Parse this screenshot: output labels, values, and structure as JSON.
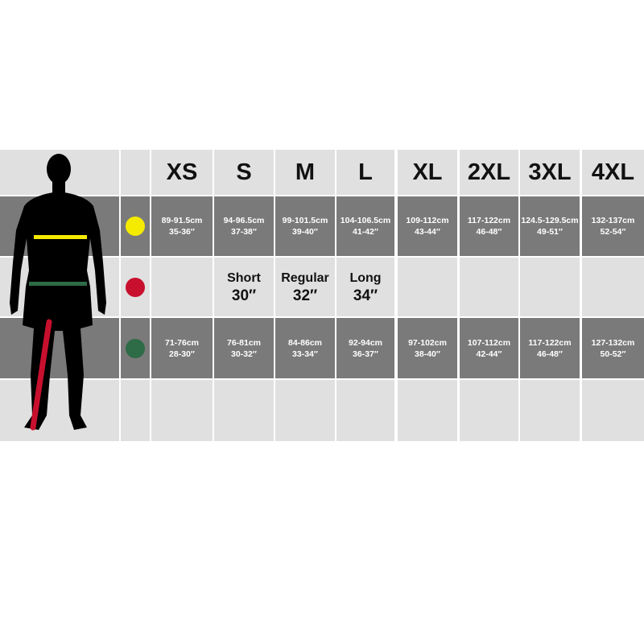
{
  "sizes": [
    "XS",
    "S",
    "M",
    "L",
    "XL",
    "2XL",
    "3XL",
    "4XL"
  ],
  "colors": {
    "chest": "#f5eb00",
    "leg": "#c8102e",
    "waist": "#2e6b47",
    "dark_row": "#7a7a7a",
    "light_row": "#e0e0e0"
  },
  "chest": [
    {
      "cm": "89-91.5cm",
      "in": "35-36″"
    },
    {
      "cm": "94-96.5cm",
      "in": "37-38″"
    },
    {
      "cm": "99-101.5cm",
      "in": "39-40″"
    },
    {
      "cm": "104-106.5cm",
      "in": "41-42″"
    },
    {
      "cm": "109-112cm",
      "in": "43-44″"
    },
    {
      "cm": "117-122cm",
      "in": "46-48″"
    },
    {
      "cm": "124.5-129.5cm",
      "in": "49-51″"
    },
    {
      "cm": "132-137cm",
      "in": "52-54″"
    }
  ],
  "leg": [
    null,
    {
      "name": "Short",
      "value": "30″"
    },
    {
      "name": "Regular",
      "value": "32″"
    },
    {
      "name": "Long",
      "value": "34″"
    },
    null,
    null,
    null,
    null
  ],
  "waist": [
    {
      "cm": "71-76cm",
      "in": "28-30″"
    },
    {
      "cm": "76-81cm",
      "in": "30-32″"
    },
    {
      "cm": "84-86cm",
      "in": "33-34″"
    },
    {
      "cm": "92-94cm",
      "in": "36-37″"
    },
    {
      "cm": "97-102cm",
      "in": "38-40″"
    },
    {
      "cm": "107-112cm",
      "in": "42-44″"
    },
    {
      "cm": "117-122cm",
      "in": "46-48″"
    },
    {
      "cm": "127-132cm",
      "in": "50-52″"
    }
  ]
}
